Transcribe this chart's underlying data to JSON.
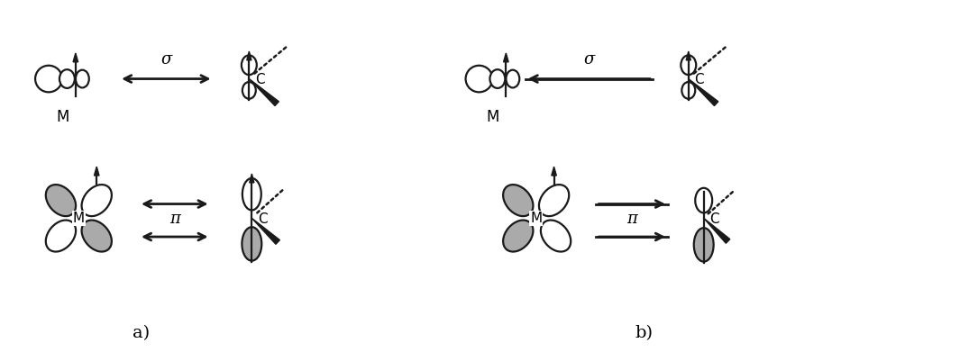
{
  "fig_width": 10.65,
  "fig_height": 3.91,
  "bg_color": "#ffffff",
  "label_a": "a)",
  "label_b": "b)",
  "sigma": "σ",
  "pi": "π",
  "label_M": "M",
  "label_C": "C",
  "font_size_greek": 13,
  "font_size_label": 14,
  "font_size_MC": 10,
  "orbital_gray": "#aaaaaa",
  "line_color": "#1a1a1a",
  "lw": 1.6
}
